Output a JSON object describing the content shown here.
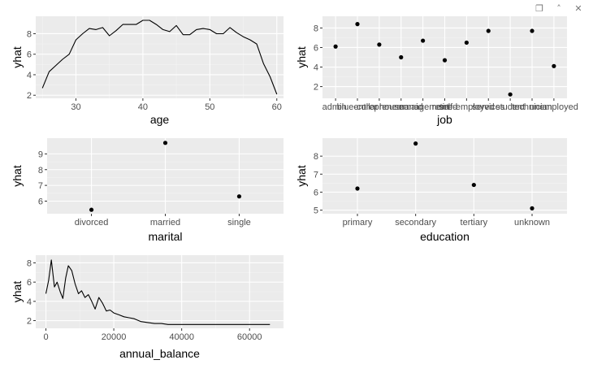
{
  "toolbar": {
    "buttons": [
      {
        "name": "copy-icon",
        "glyph": "❐"
      },
      {
        "name": "collapse-icon",
        "glyph": "˄"
      },
      {
        "name": "close-icon",
        "glyph": "✕"
      }
    ]
  },
  "colors": {
    "panel": "#ebebeb",
    "grid_major": "#ffffff",
    "grid_minor": "#f4f4f4",
    "mark": "#000000",
    "tick_text": "#4d4d4d"
  },
  "chart_data": [
    {
      "id": "age",
      "type": "line",
      "xlabel": "age",
      "ylabel": "yhat",
      "xlim": [
        24,
        61
      ],
      "ylim": [
        1.7,
        9.7
      ],
      "xticks": [
        30,
        40,
        50,
        60
      ],
      "yticks": [
        2,
        4,
        6,
        8
      ],
      "x": [
        25,
        26,
        27,
        28,
        29,
        30,
        31,
        32,
        33,
        34,
        35,
        36,
        37,
        38,
        39,
        40,
        41,
        42,
        43,
        44,
        45,
        46,
        47,
        48,
        49,
        50,
        51,
        52,
        53,
        54,
        55,
        56,
        57,
        58,
        59,
        60
      ],
      "y": [
        2.7,
        4.3,
        4.9,
        5.5,
        6.0,
        7.4,
        8.0,
        8.5,
        8.4,
        8.6,
        7.8,
        8.3,
        8.9,
        8.9,
        8.9,
        9.3,
        9.3,
        8.9,
        8.4,
        8.2,
        8.8,
        7.9,
        7.9,
        8.4,
        8.5,
        8.4,
        8.0,
        8.0,
        8.6,
        8.1,
        7.7,
        7.4,
        7.0,
        5.1,
        3.8,
        2.1
      ]
    },
    {
      "id": "job",
      "type": "scatter",
      "xlabel": "job",
      "ylabel": "yhat",
      "ylim": [
        0.8,
        9.2
      ],
      "yticks": [
        2,
        4,
        6,
        8
      ],
      "categories": [
        "admin.",
        "blue-collar",
        "entrepreneur",
        "housemaid",
        "management",
        "retired",
        "self-employed",
        "services",
        "student",
        "technician",
        "unemployed"
      ],
      "tick_labels": [
        "admin.",
        "blue-collar",
        "entrepreneur",
        "housemaid",
        "management",
        "retired",
        "self-employed",
        "services",
        "student",
        "technician",
        "unemployed"
      ],
      "values": [
        6.1,
        8.4,
        6.3,
        5.0,
        6.7,
        4.7,
        6.5,
        7.7,
        1.2,
        7.7,
        4.1
      ]
    },
    {
      "id": "marital",
      "type": "scatter",
      "xlabel": "marital",
      "ylabel": "yhat",
      "ylim": [
        5.2,
        10.0
      ],
      "yticks": [
        6,
        7,
        8,
        9
      ],
      "categories": [
        "divorced",
        "married",
        "single"
      ],
      "tick_labels": [
        "divorced",
        "married",
        "single"
      ],
      "values": [
        5.45,
        9.7,
        6.3
      ]
    },
    {
      "id": "education",
      "type": "scatter",
      "xlabel": "education",
      "ylabel": "yhat",
      "ylim": [
        4.8,
        9.0
      ],
      "yticks": [
        5,
        6,
        7,
        8
      ],
      "categories": [
        "primary",
        "secondary",
        "tertiary",
        "unknown"
      ],
      "tick_labels": [
        "primary",
        "secondary",
        "tertiary",
        "unknown"
      ],
      "values": [
        6.2,
        8.7,
        6.4,
        5.1
      ]
    },
    {
      "id": "annual_balance",
      "type": "line",
      "xlabel": "annual_balance",
      "ylabel": "yhat",
      "xlim": [
        -3000,
        70000
      ],
      "ylim": [
        1.2,
        8.8
      ],
      "xticks": [
        0,
        20000,
        40000,
        60000
      ],
      "xtick_labels": [
        "0",
        "20000",
        "40000",
        "60000"
      ],
      "yticks": [
        2,
        4,
        6,
        8
      ],
      "x": [
        0,
        800,
        1600,
        2500,
        3300,
        4200,
        5000,
        5800,
        6600,
        7600,
        8600,
        9600,
        10500,
        11500,
        12500,
        13500,
        14500,
        15600,
        16700,
        17800,
        18900,
        20000,
        21500,
        23000,
        24500,
        26000,
        28000,
        30000,
        32000,
        34000,
        36000,
        40000,
        45000,
        50000,
        55000,
        60000,
        66000
      ],
      "y": [
        4.8,
        6.2,
        8.3,
        5.5,
        6.0,
        5.0,
        4.3,
        6.4,
        7.7,
        7.2,
        5.8,
        4.8,
        5.1,
        4.4,
        4.7,
        4.0,
        3.2,
        4.4,
        3.8,
        3.0,
        3.1,
        2.8,
        2.6,
        2.4,
        2.3,
        2.2,
        1.9,
        1.8,
        1.7,
        1.7,
        1.6,
        1.6,
        1.6,
        1.6,
        1.6,
        1.6,
        1.6
      ]
    }
  ]
}
